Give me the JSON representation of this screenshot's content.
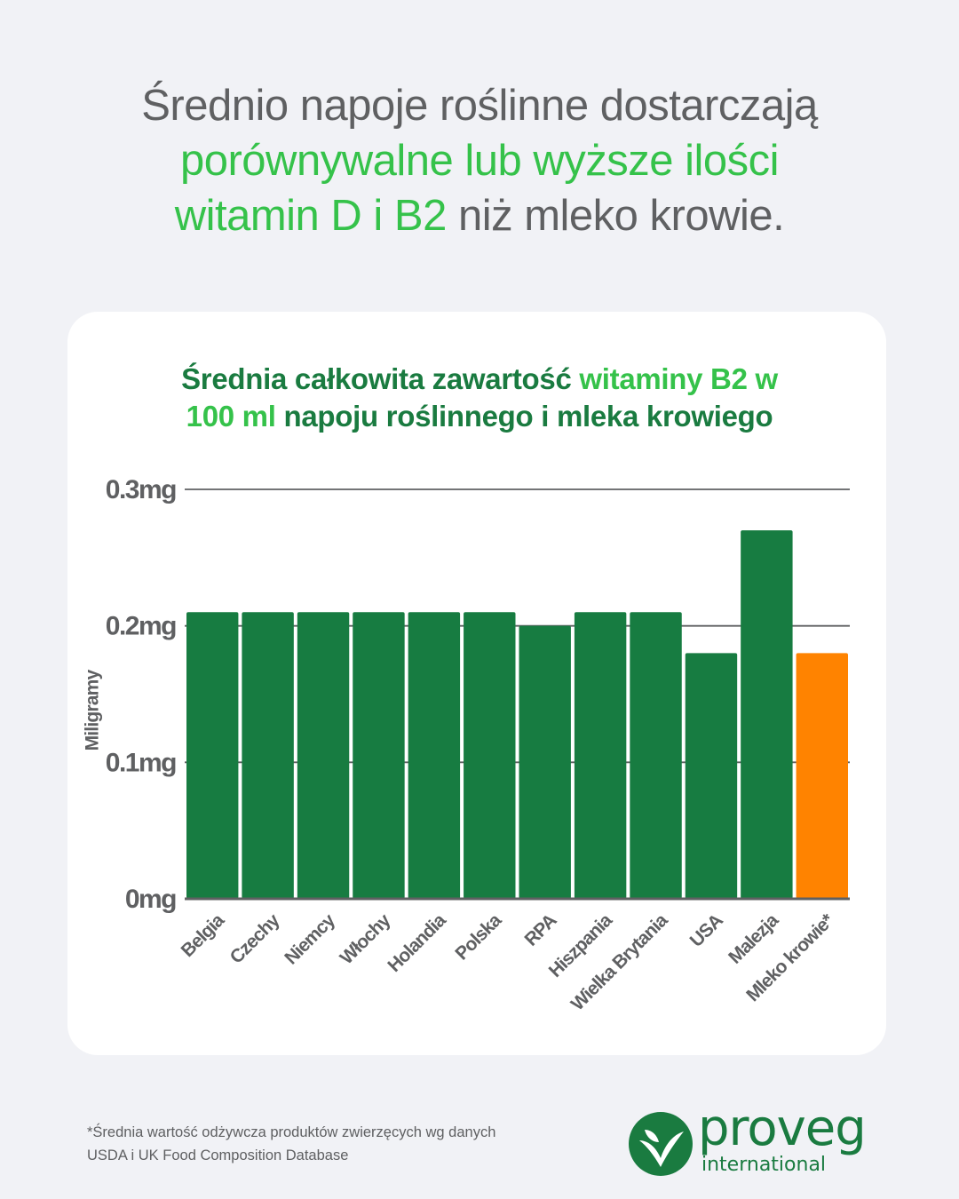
{
  "headline": {
    "part1": "Średnio napoje roślinne dostarczają",
    "part2": "porównywalne lub wyższe ilości",
    "part3": "witamin D i B2",
    "part4": " niż mleko krowie."
  },
  "chart_data": {
    "type": "bar",
    "title_parts": [
      "Średnia całkowita zawartość ",
      "witaminy B2 w",
      "100 ml",
      " napoju roślinnego i mleka krowiego"
    ],
    "ylabel": "Miligramy",
    "ylim": [
      0,
      0.3
    ],
    "yticks": [
      0,
      0.1,
      0.2,
      0.3
    ],
    "ytick_labels": [
      "0mg",
      "0.1mg",
      "0.2mg",
      "0.3mg"
    ],
    "grid": true,
    "categories": [
      "Belgia",
      "Czechy",
      "Niemcy",
      "Włochy",
      "Holandia",
      "Polska",
      "RPA",
      "Hiszpania",
      "Wielka Brytania",
      "USA",
      "Malezja",
      "Mleko krowie*"
    ],
    "values": [
      0.21,
      0.21,
      0.21,
      0.21,
      0.21,
      0.21,
      0.2,
      0.21,
      0.21,
      0.18,
      0.27,
      0.18
    ],
    "bar_colors": [
      "#177c41",
      "#177c41",
      "#177c41",
      "#177c41",
      "#177c41",
      "#177c41",
      "#177c41",
      "#177c41",
      "#177c41",
      "#177c41",
      "#177c41",
      "#ff8300"
    ]
  },
  "footnote": {
    "line1": "*Średnia wartość odżywcza produktów zwierzęcych wg danych",
    "line2": "USDA i UK Food Composition Database"
  },
  "logo": {
    "word": "proveg",
    "sub": "international",
    "color": "#1a7b40"
  }
}
